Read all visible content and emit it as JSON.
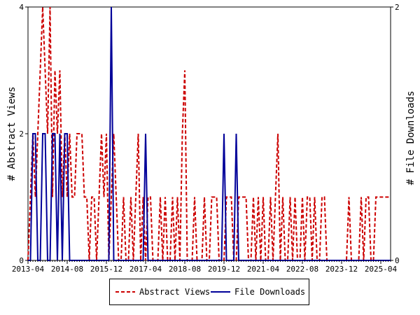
{
  "chart_data": {
    "type": "line",
    "title": "",
    "xlabel": "",
    "ylabel": "# Abstract Views",
    "y2label": "# File Downloads",
    "xlim": [
      "2013-04",
      "2025-08"
    ],
    "ylim": [
      0,
      4
    ],
    "y2lim": [
      0,
      2
    ],
    "x_tick_labels": [
      "2013-04",
      "2014-08",
      "2015-12",
      "2017-04",
      "2018-08",
      "2019-12",
      "2021-04",
      "2022-08",
      "2023-12",
      "2025-04"
    ],
    "y_tick_labels": [
      "0",
      "2",
      "4"
    ],
    "y2_tick_labels": [
      "0",
      "2"
    ],
    "grid": false,
    "legend_position": "bottom-center",
    "series": [
      {
        "name": "Abstract Views",
        "axis": "left",
        "color": "#cc0000",
        "style": "dashed",
        "x": [
          "2013-04",
          "2013-05",
          "2013-06",
          "2013-07",
          "2013-08",
          "2013-09",
          "2013-10",
          "2013-11",
          "2013-12",
          "2014-01",
          "2014-02",
          "2014-03",
          "2014-04",
          "2014-05",
          "2014-06",
          "2014-07",
          "2014-08",
          "2014-09",
          "2014-10",
          "2014-11",
          "2014-12",
          "2015-01",
          "2015-02",
          "2015-03",
          "2015-04",
          "2015-05",
          "2015-06",
          "2015-07",
          "2015-08",
          "2015-09",
          "2015-10",
          "2015-11",
          "2015-12",
          "2016-01",
          "2016-02",
          "2016-03",
          "2016-04",
          "2016-05",
          "2016-06",
          "2016-07",
          "2016-08",
          "2016-09",
          "2016-10",
          "2016-11",
          "2016-12",
          "2017-01",
          "2017-02",
          "2017-03",
          "2017-04",
          "2017-05",
          "2017-06",
          "2017-07",
          "2017-08",
          "2017-09",
          "2017-10",
          "2017-11",
          "2017-12",
          "2018-01",
          "2018-02",
          "2018-03",
          "2018-04",
          "2018-05",
          "2018-06",
          "2018-07",
          "2018-08",
          "2018-09",
          "2018-10",
          "2018-11",
          "2018-12",
          "2019-01",
          "2019-02",
          "2019-03",
          "2019-04",
          "2019-05",
          "2019-06",
          "2019-07",
          "2019-08",
          "2019-09",
          "2019-10",
          "2019-11",
          "2019-12",
          "2020-01",
          "2020-02",
          "2020-03",
          "2020-04",
          "2020-05",
          "2020-06",
          "2020-07",
          "2020-08",
          "2020-09",
          "2020-10",
          "2020-11",
          "2020-12",
          "2021-01",
          "2021-02",
          "2021-03",
          "2021-04",
          "2021-05",
          "2021-06",
          "2021-07",
          "2021-08",
          "2021-09",
          "2021-10",
          "2021-11",
          "2021-12",
          "2022-01",
          "2022-02",
          "2022-03",
          "2022-04",
          "2022-05",
          "2022-06",
          "2022-07",
          "2022-08",
          "2022-09",
          "2022-10",
          "2022-11",
          "2022-12",
          "2023-01",
          "2023-02",
          "2023-03",
          "2023-04",
          "2023-05",
          "2023-06",
          "2023-07",
          "2023-08",
          "2023-09",
          "2023-10",
          "2023-11",
          "2023-12",
          "2024-01",
          "2024-02",
          "2024-03",
          "2024-04",
          "2024-05",
          "2024-06",
          "2024-07",
          "2024-08",
          "2024-09",
          "2024-10",
          "2024-11",
          "2024-12",
          "2025-01",
          "2025-02",
          "2025-03",
          "2025-04",
          "2025-05",
          "2025-06",
          "2025-07",
          "2025-08"
        ],
        "values": [
          0,
          1,
          2,
          1,
          2,
          3,
          4,
          3,
          2,
          4,
          1,
          3,
          2,
          3,
          1,
          2,
          1,
          2,
          1,
          1,
          2,
          2,
          2,
          1,
          1,
          0,
          1,
          1,
          0,
          1,
          2,
          1,
          2,
          0,
          1,
          2,
          1,
          0,
          0,
          1,
          0,
          0,
          1,
          0,
          1,
          2,
          0,
          1,
          0,
          1,
          1,
          0,
          0,
          0,
          1,
          0,
          1,
          0,
          0,
          1,
          0,
          1,
          0,
          2,
          3,
          0,
          0,
          0,
          1,
          0,
          0,
          0,
          1,
          0,
          0,
          1,
          1,
          1,
          0,
          0,
          0,
          1,
          1,
          1,
          0,
          0,
          1,
          1,
          1,
          1,
          0,
          0,
          1,
          0,
          1,
          0,
          1,
          0,
          0,
          1,
          0,
          1,
          2,
          0,
          1,
          0,
          0,
          1,
          0,
          1,
          0,
          0,
          1,
          0,
          1,
          1,
          0,
          1,
          0,
          0,
          1,
          1,
          0,
          0,
          0,
          0,
          0,
          0,
          0,
          0,
          0,
          1,
          0,
          0,
          0,
          0,
          1,
          0,
          1,
          1,
          0,
          0,
          1,
          1,
          1,
          1,
          1,
          1,
          1
        ]
      },
      {
        "name": "File Downloads",
        "axis": "right",
        "color": "#000099",
        "style": "solid",
        "x": [
          "2013-04",
          "2013-05",
          "2013-06",
          "2013-07",
          "2013-08",
          "2013-09",
          "2013-10",
          "2013-11",
          "2013-12",
          "2014-01",
          "2014-02",
          "2014-03",
          "2014-04",
          "2014-05",
          "2014-06",
          "2014-07",
          "2014-08",
          "2014-09",
          "2014-10",
          "2014-11",
          "2014-12",
          "2015-01",
          "2015-02",
          "2015-03",
          "2015-04",
          "2015-05",
          "2015-06",
          "2015-07",
          "2015-08",
          "2015-09",
          "2015-10",
          "2015-11",
          "2015-12",
          "2016-01",
          "2016-02",
          "2016-03",
          "2016-04",
          "2016-05",
          "2016-06",
          "2016-07",
          "2016-08",
          "2016-09",
          "2016-10",
          "2016-11",
          "2016-12",
          "2017-01",
          "2017-02",
          "2017-03",
          "2017-04",
          "2017-05",
          "2017-06",
          "2017-07",
          "2017-08",
          "2017-09",
          "2017-10",
          "2017-11",
          "2017-12",
          "2018-01",
          "2018-02",
          "2018-03",
          "2018-04",
          "2018-05",
          "2018-06",
          "2018-07",
          "2018-08",
          "2018-09",
          "2018-10",
          "2018-11",
          "2018-12",
          "2019-01",
          "2019-02",
          "2019-03",
          "2019-04",
          "2019-05",
          "2019-06",
          "2019-07",
          "2019-08",
          "2019-09",
          "2019-10",
          "2019-11",
          "2019-12",
          "2020-01",
          "2020-02",
          "2020-03",
          "2020-04",
          "2020-05",
          "2020-06",
          "2020-07",
          "2020-08",
          "2020-09",
          "2020-10",
          "2020-11",
          "2020-12",
          "2021-01",
          "2021-02",
          "2021-03",
          "2021-04",
          "2021-05",
          "2021-06",
          "2021-07",
          "2021-08",
          "2021-09",
          "2021-10",
          "2021-11",
          "2021-12",
          "2022-01",
          "2022-02",
          "2022-03",
          "2022-04",
          "2022-05",
          "2022-06",
          "2022-07",
          "2022-08",
          "2022-09",
          "2022-10",
          "2022-11",
          "2022-12",
          "2023-01",
          "2023-02",
          "2023-03",
          "2023-04",
          "2023-05",
          "2023-06",
          "2023-07",
          "2023-08",
          "2023-09",
          "2023-10",
          "2023-11",
          "2023-12",
          "2024-01",
          "2024-02",
          "2024-03",
          "2024-04",
          "2024-05",
          "2024-06",
          "2024-07",
          "2024-08",
          "2024-09",
          "2024-10",
          "2024-11",
          "2024-12",
          "2025-01",
          "2025-02",
          "2025-03",
          "2025-04",
          "2025-05",
          "2025-06",
          "2025-07",
          "2025-08"
        ],
        "values": [
          0,
          0,
          1,
          1,
          0,
          0,
          1,
          1,
          0,
          0,
          1,
          1,
          0,
          1,
          0,
          1,
          1,
          0,
          0,
          0,
          0,
          0,
          0,
          0,
          0,
          0,
          0,
          0,
          0,
          0,
          0,
          0,
          0,
          0,
          2,
          0,
          0,
          0,
          0,
          0,
          0,
          0,
          0,
          0,
          0,
          0,
          0,
          0,
          1,
          0,
          0,
          0,
          0,
          0,
          0,
          0,
          0,
          0,
          0,
          0,
          0,
          0,
          0,
          0,
          0,
          0,
          0,
          0,
          0,
          0,
          0,
          0,
          0,
          0,
          0,
          0,
          0,
          0,
          0,
          0,
          1,
          0,
          0,
          0,
          0,
          1,
          0,
          0,
          0,
          0,
          0,
          0,
          0,
          0,
          0,
          0,
          0,
          0,
          0,
          0,
          0,
          0,
          0,
          0,
          0,
          0,
          0,
          0,
          0,
          0,
          0,
          0,
          0,
          0,
          0,
          0,
          0,
          0,
          0,
          0,
          0,
          0,
          0,
          0,
          0,
          0,
          0,
          0,
          0,
          0,
          0,
          0,
          0,
          0,
          0,
          0,
          0,
          0,
          0,
          0,
          0,
          0,
          0,
          0,
          0,
          0,
          0,
          0,
          0
        ]
      }
    ]
  }
}
